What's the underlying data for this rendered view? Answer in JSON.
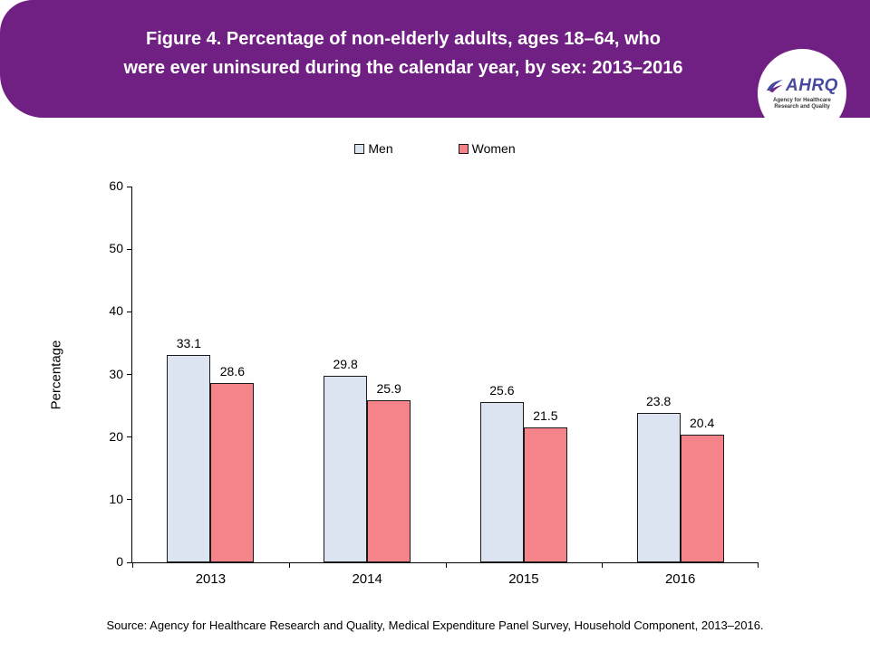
{
  "header": {
    "title_line1": "Figure 4. Percentage of non-elderly adults, ages 18–64, who",
    "title_line2": "were ever uninsured during the calendar year, by sex: 2013–2016"
  },
  "logo": {
    "acronym": "AHRQ",
    "tagline": "Agency for Healthcare Research and Quality"
  },
  "colors": {
    "header-purple": "#702082",
    "logo-blue": "#454A9F",
    "axis": "#000000",
    "bar-border": "#1a1a1a",
    "men-fill": "#DCE4F2",
    "women-fill": "#F4838A"
  },
  "chart_data": {
    "type": "bar",
    "categories": [
      "2013",
      "2014",
      "2015",
      "2016"
    ],
    "series": [
      {
        "name": "Men",
        "values": [
          33.1,
          29.8,
          25.6,
          23.8
        ],
        "color": "#DCE4F2"
      },
      {
        "name": "Women",
        "values": [
          28.6,
          25.9,
          21.5,
          20.4
        ],
        "color": "#F4838A"
      }
    ],
    "title": "Percentage of non-elderly adults, ages 18–64, who were ever uninsured during the calendar year, by sex: 2013–2016",
    "xlabel": "",
    "ylabel": "Percentage",
    "ylim": [
      0,
      60
    ],
    "yticks": [
      0,
      10,
      20,
      30,
      40,
      50,
      60
    ],
    "grid": false,
    "legend_position": "top"
  },
  "footer": {
    "source": "Source: Agency for Healthcare Research and Quality, Medical Expenditure Panel Survey, Household Component, 2013–2016."
  }
}
